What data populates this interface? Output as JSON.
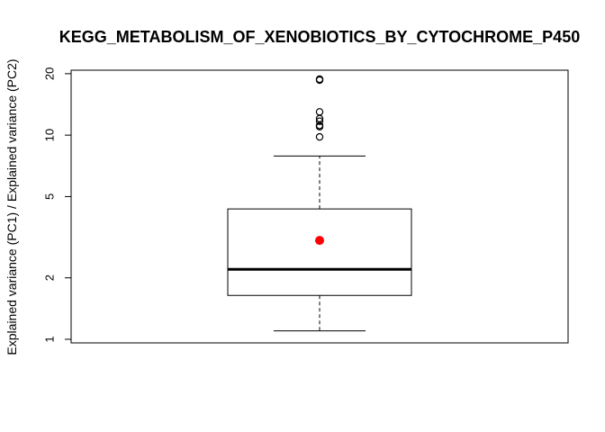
{
  "chart_data": {
    "type": "box",
    "title": "KEGG_METABOLISM_OF_XENOBIOTICS_BY_CYTOCHROME_P450",
    "xlabel": "",
    "ylabel": "Explained variance (PC1) / Explained variance (PC2)",
    "y_scale": "log",
    "ylim": [
      0.96,
      20.8
    ],
    "y_ticks": [
      1,
      2,
      5,
      10,
      20
    ],
    "y_tick_labels": [
      "1",
      "2",
      "5",
      "10",
      "20"
    ],
    "grid": false,
    "legend": "none",
    "box": {
      "whisker_low": 1.1,
      "q1": 1.64,
      "median": 2.2,
      "q3": 4.35,
      "whisker_high": 7.9,
      "mean": 3.05,
      "outliers": [
        9.8,
        11.0,
        11.15,
        11.7,
        12.05,
        13.0,
        18.6,
        18.8
      ]
    },
    "colors": {
      "mean_point": "#ff0000",
      "box_stroke": "#000000",
      "outlier_stroke": "#000000"
    }
  }
}
